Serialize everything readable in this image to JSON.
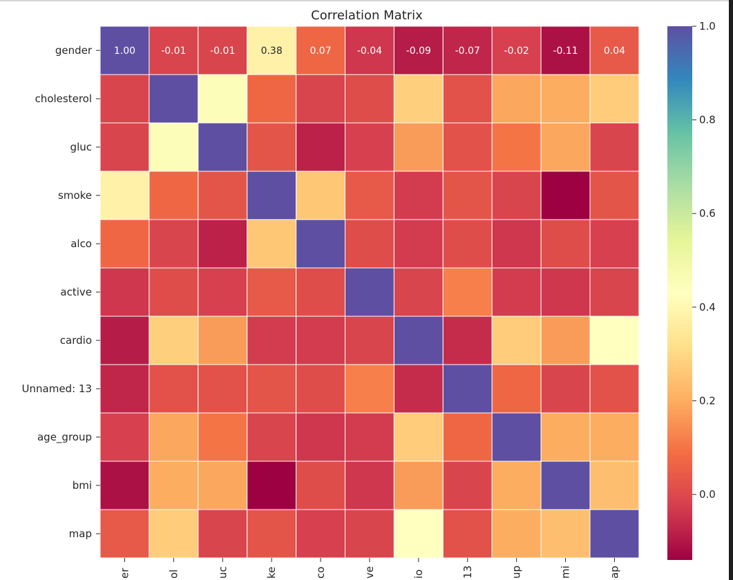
{
  "chart_data": {
    "type": "heatmap",
    "title": "Correlation Matrix",
    "rows": [
      "gender",
      "cholesterol",
      "gluc",
      "smoke",
      "alco",
      "active",
      "cardio",
      "Unnamed: 13",
      "age_group",
      "bmi",
      "map"
    ],
    "columns_visible_fragments": [
      "er",
      "ol",
      "uc",
      "ke",
      "co",
      "ve",
      "io",
      "13",
      "up",
      "mi",
      "ap"
    ],
    "matrix": [
      [
        1.0,
        -0.01,
        -0.01,
        0.38,
        0.07,
        -0.04,
        -0.09,
        -0.07,
        -0.02,
        -0.11,
        0.04
      ],
      [
        -0.01,
        1.0,
        0.45,
        0.07,
        -0.01,
        0.01,
        0.28,
        0.02,
        0.19,
        0.2,
        0.27
      ],
      [
        -0.01,
        0.45,
        1.0,
        0.03,
        -0.08,
        -0.02,
        0.17,
        0.02,
        0.1,
        0.19,
        -0.01
      ],
      [
        0.38,
        0.07,
        0.03,
        1.0,
        0.26,
        0.04,
        -0.03,
        0.03,
        -0.01,
        -0.14,
        0.03
      ],
      [
        0.07,
        -0.01,
        -0.08,
        0.26,
        1.0,
        0.01,
        -0.03,
        0.01,
        -0.04,
        0.01,
        -0.02
      ],
      [
        -0.04,
        0.01,
        -0.02,
        0.04,
        0.01,
        1.0,
        -0.01,
        0.12,
        -0.03,
        -0.04,
        -0.01
      ],
      [
        -0.09,
        0.28,
        0.17,
        -0.03,
        -0.03,
        -0.01,
        1.0,
        -0.06,
        0.27,
        0.17,
        0.43
      ],
      [
        -0.07,
        0.02,
        0.02,
        0.03,
        0.01,
        0.12,
        -0.06,
        1.0,
        0.07,
        -0.01,
        0.02
      ],
      [
        -0.02,
        0.19,
        0.1,
        -0.01,
        -0.04,
        -0.03,
        0.27,
        0.07,
        1.0,
        0.2,
        0.2
      ],
      [
        -0.11,
        0.2,
        0.19,
        -0.14,
        0.01,
        -0.04,
        0.17,
        -0.01,
        0.2,
        1.0,
        0.24
      ],
      [
        0.04,
        0.27,
        -0.01,
        0.03,
        -0.02,
        -0.01,
        0.43,
        0.02,
        0.2,
        0.24,
        1.0
      ]
    ],
    "annotated_row_labels": [
      "1.00",
      "-0.01",
      "-0.01",
      "0.38",
      "0.07",
      "-0.04",
      "-0.09",
      "-0.07",
      "-0.02",
      "-0.11",
      "0.04"
    ],
    "colormap": "Spectral",
    "vmin": -0.14,
    "vmax": 1.0,
    "colorbar_ticks": [
      "0.0",
      "0.2",
      "0.4",
      "0.6",
      "0.8",
      "1.0"
    ],
    "colorbar_tick_values": [
      0.0,
      0.2,
      0.4,
      0.6,
      0.8,
      1.0
    ],
    "cell_border_color": "#ffffff"
  }
}
